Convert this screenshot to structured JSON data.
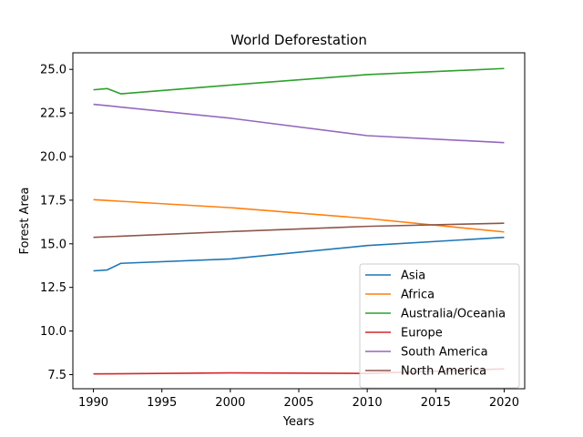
{
  "chart_data": {
    "type": "line",
    "title": "World Deforestation",
    "xlabel": "Years",
    "ylabel": "Forest Area",
    "xlim": [
      1988.5,
      2021.5
    ],
    "ylim": [
      6.69,
      25.95
    ],
    "x_ticks": [
      1990,
      1995,
      2000,
      2005,
      2010,
      2015,
      2020
    ],
    "y_ticks": [
      7.5,
      10.0,
      12.5,
      15.0,
      17.5,
      20.0,
      22.5,
      25.0
    ],
    "y_tick_labels": [
      "7.5",
      "10.0",
      "12.5",
      "15.0",
      "17.5",
      "20.0",
      "22.5",
      "25.0"
    ],
    "x_tick_labels": [
      "1990",
      "1995",
      "2000",
      "2005",
      "2010",
      "2015",
      "2020"
    ],
    "grid": false,
    "legend_position": "lower-right",
    "series": [
      {
        "name": "Asia",
        "color": "#1f77b4",
        "x": [
          1990,
          1991,
          1992,
          2000,
          2010,
          2020
        ],
        "y": [
          13.45,
          13.5,
          13.88,
          14.13,
          14.9,
          15.37
        ]
      },
      {
        "name": "Africa",
        "color": "#ff7f0e",
        "x": [
          1990,
          2000,
          2010,
          2020
        ],
        "y": [
          17.53,
          17.07,
          16.45,
          15.68
        ]
      },
      {
        "name": "Australia/Oceania",
        "color": "#2ca02c",
        "x": [
          1990,
          1991,
          1992,
          2000,
          2010,
          2020
        ],
        "y": [
          23.83,
          23.9,
          23.6,
          24.1,
          24.7,
          25.05
        ]
      },
      {
        "name": "Europe",
        "color": "#d62728",
        "x": [
          1990,
          2000,
          2010,
          2020
        ],
        "y": [
          7.54,
          7.6,
          7.57,
          7.83
        ]
      },
      {
        "name": "South America",
        "color": "#9467bd",
        "x": [
          1990,
          2000,
          2010,
          2020
        ],
        "y": [
          23.0,
          22.2,
          21.2,
          20.8
        ]
      },
      {
        "name": "North America",
        "color": "#8c564b",
        "x": [
          1990,
          2000,
          2010,
          2020
        ],
        "y": [
          15.37,
          15.7,
          16.0,
          16.18
        ]
      }
    ]
  }
}
